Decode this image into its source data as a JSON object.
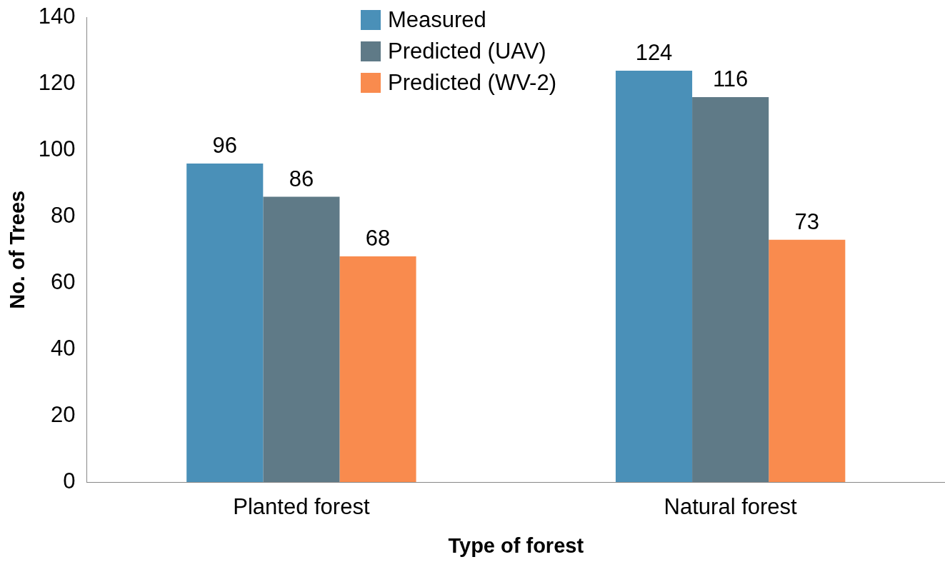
{
  "chart_data": {
    "type": "bar",
    "xlabel": "Type of forest",
    "ylabel": "No. of Trees",
    "categories": [
      "Planted forest",
      "Natural forest"
    ],
    "series": [
      {
        "name": "Measured",
        "color": "#4a90b8",
        "values": [
          96,
          124
        ]
      },
      {
        "name": "Predicted (UAV)",
        "color": "#5f7a87",
        "values": [
          86,
          116
        ]
      },
      {
        "name": "Predicted (WV-2)",
        "color": "#f98b4e",
        "values": [
          68,
          73
        ]
      }
    ],
    "ylim": [
      0,
      140
    ],
    "yticks": [
      0,
      20,
      40,
      60,
      80,
      100,
      120,
      140
    ],
    "grid": false,
    "legend": "top",
    "data_labels": true
  }
}
